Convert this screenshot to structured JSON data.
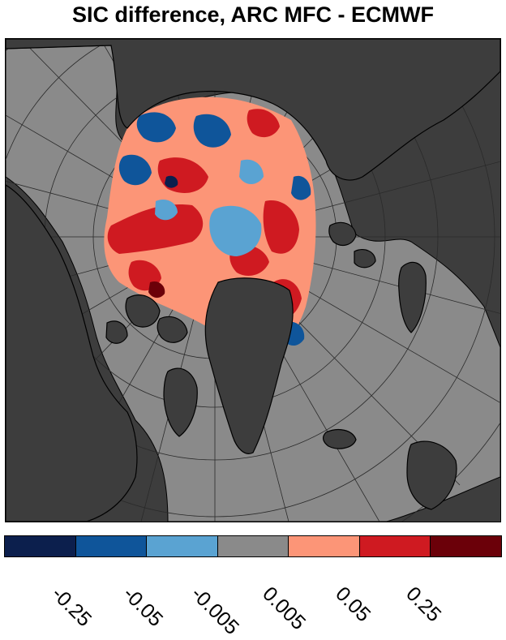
{
  "figure": {
    "title": "SIC difference, ARC MFC - ECMWF"
  },
  "map": {
    "projection": "polar stereographic",
    "region": "Arctic",
    "colors": {
      "land": "#3d3d3d",
      "ocean_no_difference": "#8a8a8a",
      "coastline": "#000000",
      "graticule": "#2a2a2a"
    }
  },
  "colorbar": {
    "colors": [
      "#0c1f4d",
      "#0f559a",
      "#5aa3d2",
      "#8a8a8a",
      "#fc9577",
      "#cf1a21",
      "#6b0009"
    ],
    "tick_labels": [
      "-0.25",
      "-0.05",
      "-0.005",
      "0.005",
      "0.05",
      "0.25"
    ]
  }
}
